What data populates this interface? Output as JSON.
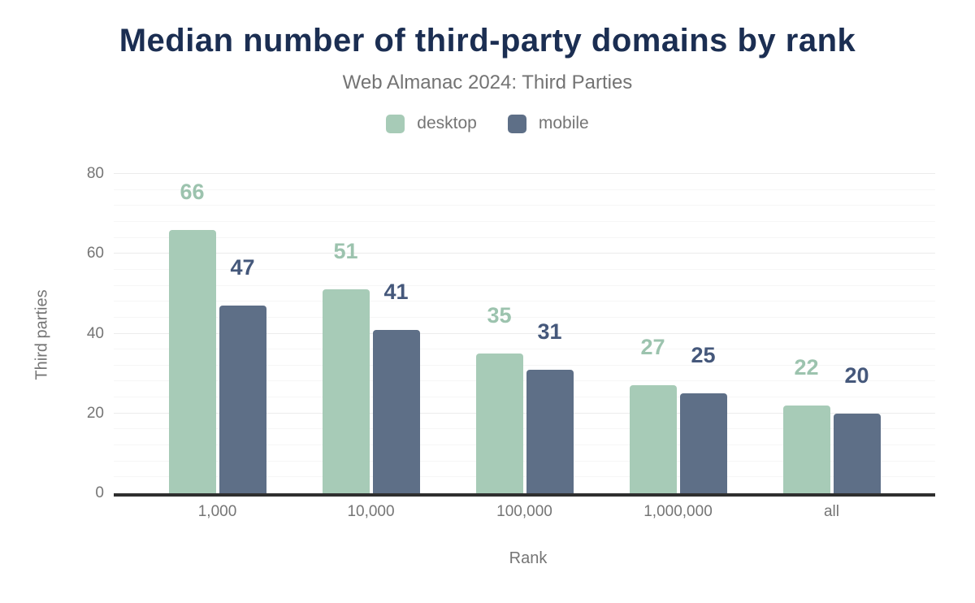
{
  "chart_data": {
    "type": "bar",
    "title": "Median number of third-party domains by rank",
    "subtitle": "Web Almanac 2024: Third Parties",
    "xlabel": "Rank",
    "ylabel": "Third parties",
    "categories": [
      "1,000",
      "10,000",
      "100,000",
      "1,000,000",
      "all"
    ],
    "series": [
      {
        "name": "desktop",
        "color": "#a7cbb7",
        "label_color": "#9cc3ae",
        "values": [
          66,
          51,
          35,
          27,
          22
        ]
      },
      {
        "name": "mobile",
        "color": "#5e6f87",
        "label_color": "#45587b",
        "values": [
          47,
          41,
          31,
          25,
          20
        ]
      }
    ],
    "ylim": [
      0,
      80
    ],
    "yticks": [
      0,
      20,
      40,
      60,
      80
    ],
    "grid_minor_step": 4,
    "grid_major_step": 20,
    "legend_position": "top-center",
    "bar_labels": "values shown above bars, colored per series"
  },
  "palette": {
    "background": "#ffffff",
    "title_text": "#1b2e52",
    "muted_text": "#757575",
    "axis_line": "#2f2f2f",
    "grid_minor": "#f6f6f6",
    "grid_major": "#ececec"
  }
}
